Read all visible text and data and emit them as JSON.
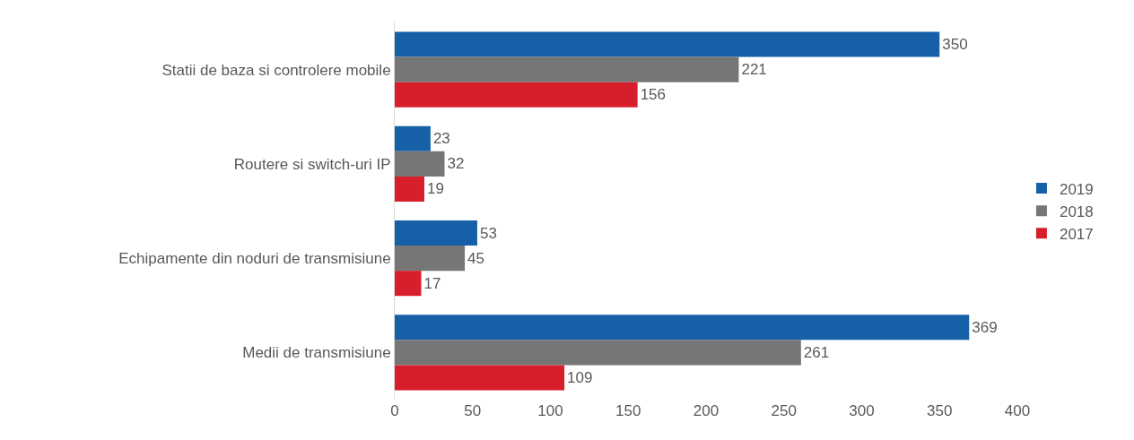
{
  "chart_data": {
    "type": "bar",
    "orientation": "horizontal",
    "categories": [
      "Statii de baza si controlere mobile",
      "Routere si switch-uri IP",
      "Echipamente din noduri de transmisiune",
      "Medii de transmisiune"
    ],
    "series": [
      {
        "name": "2019",
        "color": "#1660a8",
        "values": [
          350,
          23,
          53,
          369
        ]
      },
      {
        "name": "2018",
        "color": "#767676",
        "values": [
          221,
          32,
          45,
          261
        ]
      },
      {
        "name": "2017",
        "color": "#d71f2b",
        "values": [
          156,
          19,
          17,
          109
        ]
      }
    ],
    "xlim": [
      0,
      400
    ],
    "xticks": [
      0,
      50,
      100,
      150,
      200,
      250,
      300,
      350,
      400
    ],
    "data_labels": true,
    "grid": false,
    "legend": "right"
  }
}
